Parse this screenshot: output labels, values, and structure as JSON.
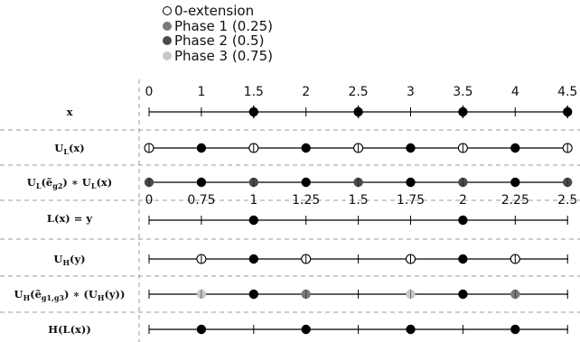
{
  "legend": [
    {
      "label": "0-extension",
      "marker": "open"
    },
    {
      "label": "Phase 1 (0.25)",
      "marker": "phase1"
    },
    {
      "label": "Phase 2 (0.5)",
      "marker": "phase2"
    },
    {
      "label": "Phase 3 (0.75)",
      "marker": "phase3"
    }
  ],
  "colors": {
    "filled": "#000000",
    "phase1": "#7a7a7a",
    "phase2": "#4a4a4a",
    "phase3": "#c8c8c8",
    "open_fill": "#ffffff",
    "line": "#000000",
    "dash": "#999999"
  },
  "axes": {
    "x": {
      "ticks": [
        "0",
        "1",
        "1.5",
        "2",
        "2.5",
        "3",
        "3.5",
        "4",
        "4.5"
      ]
    },
    "y": {
      "ticks": [
        "0",
        "0.75",
        "1",
        "1.25",
        "1.5",
        "1.75",
        "2",
        "2.25",
        "2.5"
      ]
    }
  },
  "rows": [
    {
      "label": "x",
      "axis_labels": "x",
      "points": [
        {
          "i": 2,
          "style": "filled_cross"
        },
        {
          "i": 4,
          "style": "filled_cross"
        },
        {
          "i": 6,
          "style": "filled_cross"
        },
        {
          "i": 8,
          "style": "filled_cross"
        }
      ]
    },
    {
      "label": "U_L(x)",
      "axis_labels": null,
      "points": [
        {
          "i": 0,
          "style": "open"
        },
        {
          "i": 1,
          "style": "filled"
        },
        {
          "i": 2,
          "style": "open"
        },
        {
          "i": 3,
          "style": "filled"
        },
        {
          "i": 4,
          "style": "open"
        },
        {
          "i": 5,
          "style": "filled"
        },
        {
          "i": 6,
          "style": "open"
        },
        {
          "i": 7,
          "style": "filled"
        },
        {
          "i": 8,
          "style": "open"
        }
      ]
    },
    {
      "label": "U_L(ẽ_g2) ∗ U_L(x)",
      "axis_labels": null,
      "points": [
        {
          "i": 0,
          "style": "phase2"
        },
        {
          "i": 1,
          "style": "filled"
        },
        {
          "i": 2,
          "style": "phase2"
        },
        {
          "i": 3,
          "style": "filled"
        },
        {
          "i": 4,
          "style": "phase2"
        },
        {
          "i": 5,
          "style": "filled"
        },
        {
          "i": 6,
          "style": "phase2"
        },
        {
          "i": 7,
          "style": "filled"
        },
        {
          "i": 8,
          "style": "phase2"
        }
      ]
    },
    {
      "label": "L(x) = y",
      "axis_labels": "y",
      "points": [
        {
          "i": 2,
          "style": "filled"
        },
        {
          "i": 6,
          "style": "filled"
        }
      ]
    },
    {
      "label": "U_H(y)",
      "axis_labels": null,
      "points": [
        {
          "i": 1,
          "style": "open"
        },
        {
          "i": 2,
          "style": "filled"
        },
        {
          "i": 3,
          "style": "open"
        },
        {
          "i": 5,
          "style": "open"
        },
        {
          "i": 6,
          "style": "filled"
        },
        {
          "i": 7,
          "style": "open"
        }
      ]
    },
    {
      "label": "U_H(ẽ_g1,g3) ∗ (U_H(y))",
      "axis_labels": null,
      "points": [
        {
          "i": 1,
          "style": "phase3"
        },
        {
          "i": 2,
          "style": "filled"
        },
        {
          "i": 3,
          "style": "phase1"
        },
        {
          "i": 5,
          "style": "phase3"
        },
        {
          "i": 6,
          "style": "filled"
        },
        {
          "i": 7,
          "style": "phase1"
        }
      ]
    },
    {
      "label": "H(L(x))",
      "axis_labels": null,
      "points": [
        {
          "i": 1,
          "style": "filled"
        },
        {
          "i": 3,
          "style": "filled"
        },
        {
          "i": 5,
          "style": "filled"
        },
        {
          "i": 7,
          "style": "filled"
        }
      ]
    }
  ]
}
